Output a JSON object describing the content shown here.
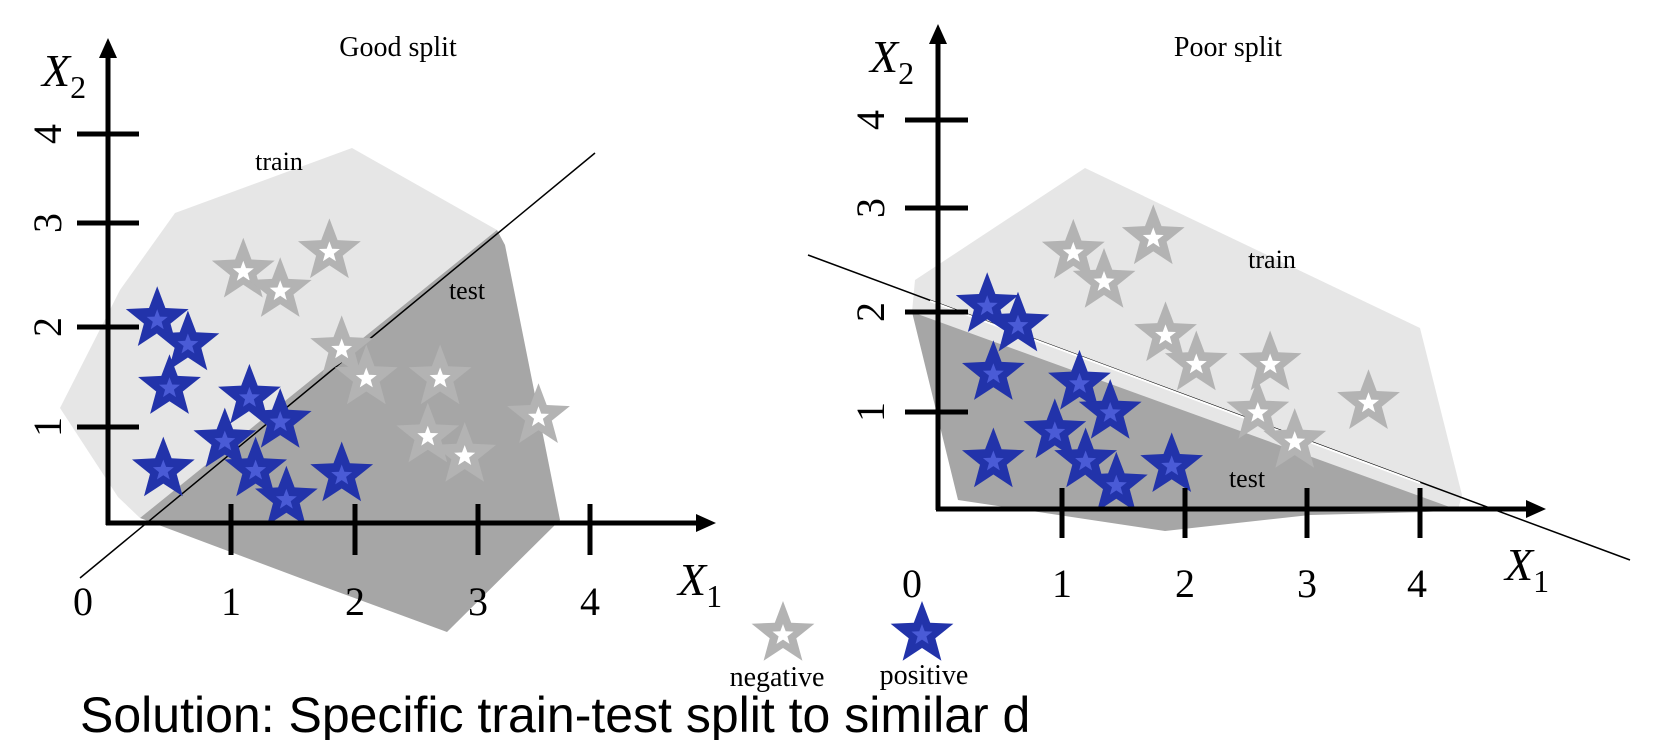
{
  "panels": [
    {
      "title": "Good split",
      "y_axis_label": "X",
      "y_axis_sub": "2",
      "x_axis_label": "X",
      "x_axis_sub": "1",
      "origin_label": "0",
      "x_ticks": [
        "1",
        "2",
        "3",
        "4"
      ],
      "y_ticks": [
        "1",
        "2",
        "3",
        "4"
      ],
      "train_label": "train",
      "test_label": "test",
      "negative_points": [
        [
          1.1,
          2.6
        ],
        [
          1.4,
          2.4
        ],
        [
          1.8,
          2.8
        ],
        [
          1.9,
          1.8
        ],
        [
          2.1,
          1.5
        ],
        [
          2.7,
          1.5
        ],
        [
          2.6,
          0.9
        ],
        [
          2.9,
          0.7
        ],
        [
          3.5,
          1.1
        ]
      ],
      "positive_points": [
        [
          0.4,
          2.1
        ],
        [
          0.65,
          1.85
        ],
        [
          0.5,
          1.4
        ],
        [
          1.15,
          1.3
        ],
        [
          1.4,
          1.05
        ],
        [
          0.95,
          0.85
        ],
        [
          1.2,
          0.55
        ],
        [
          0.45,
          0.55
        ],
        [
          1.45,
          0.25
        ],
        [
          1.9,
          0.5
        ]
      ]
    },
    {
      "title": "Poor split",
      "y_axis_label": "X",
      "y_axis_sub": "2",
      "x_axis_label": "X",
      "x_axis_sub": "1",
      "origin_label": "0",
      "x_ticks": [
        "1",
        "2",
        "3",
        "4"
      ],
      "y_ticks": [
        "1",
        "2",
        "3",
        "4"
      ],
      "train_label": "train",
      "test_label": "test",
      "negative_points": [
        [
          1.1,
          2.65
        ],
        [
          1.35,
          2.35
        ],
        [
          1.75,
          2.8
        ],
        [
          1.85,
          1.8
        ],
        [
          2.1,
          1.5
        ],
        [
          2.7,
          1.5
        ],
        [
          2.6,
          1.0
        ],
        [
          2.9,
          0.7
        ],
        [
          3.5,
          1.1
        ]
      ],
      "positive_points": [
        [
          0.4,
          2.1
        ],
        [
          0.65,
          1.9
        ],
        [
          0.45,
          1.4
        ],
        [
          1.15,
          1.3
        ],
        [
          1.4,
          1.0
        ],
        [
          0.95,
          0.8
        ],
        [
          1.2,
          0.5
        ],
        [
          0.45,
          0.5
        ],
        [
          1.45,
          0.25
        ],
        [
          1.9,
          0.45
        ]
      ]
    }
  ],
  "legend": {
    "negative_label": "negative",
    "positive_label": "positive"
  },
  "caption": "Solution: Specific train-test split to similar d",
  "colors": {
    "train_region": "#e6e6e6",
    "test_region": "#a6a6a6",
    "positive": "#2233aa",
    "negative": "#b3b3b3"
  }
}
